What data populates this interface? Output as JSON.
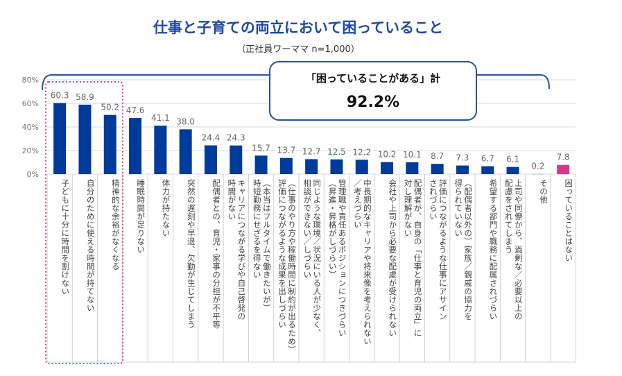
{
  "chart_data": {
    "type": "bar",
    "title": "仕事と子育ての両立において困っていること",
    "subtitle": "（正社員ワーママ n=1,000）",
    "ylim": [
      0,
      80
    ],
    "yticks": [
      "0%",
      "20%",
      "40%",
      "60%",
      "80%"
    ],
    "grid": true,
    "categories": [
      "子どもに十分に時間を割けない",
      "自分のために使える時間が持てない",
      "精神的な余裕がなくなる",
      "睡眠時間が足りない",
      "体力が持たない",
      "突然の遅刻や早退、欠勤が生じてしまう",
      "配偶者との、育児・家事の分担が不平等",
      "キャリアにつながる学びや自己啓発の\n時間がない",
      "（本当はフルタイムで働きたいが）\n時短勤務にせざるを得ない",
      "（仕事のやり方や稼働時間に制約が出るため）\n評価につながるような成果を出しづらい",
      "同じような環境／状況にいる人が少なく、\n相談ができない／しづらい",
      "管理職や責任あるポジションにつきづらい\n（昇進・昇格がしづらい）",
      "中長期的なキャリアや将来像を考えられない\n／考えづらい",
      "会社や上司から必要な配慮が受けられない",
      "配偶者が、自身の「仕事と育児の両立」に\n対し理解がない",
      "評価につながるような仕事にアサイン\nされづらい",
      "（配偶者以外の）家族／親戚の協力を\n得られていない",
      "希望する部門や職務に配属されづらい",
      "上司や同僚から、過剰な／必要以上の\n配慮をされてしまう",
      "その他",
      "困っていることはない"
    ],
    "values": [
      60.3,
      58.9,
      50.2,
      47.6,
      41.1,
      38.0,
      24.4,
      24.3,
      15.7,
      13.7,
      12.7,
      12.5,
      12.2,
      10.2,
      10.1,
      8.7,
      7.3,
      6.7,
      6.1,
      0.2,
      7.8
    ],
    "value_labels": [
      "60.3",
      "58.9",
      "50.2",
      "47.6",
      "41.1",
      "38.0",
      "24.4",
      "24.3",
      "15.7",
      "13.7",
      "12.7",
      "12.5",
      "12.2",
      "10.2",
      "10.1",
      "8.7",
      "7.3",
      "6.7",
      "6.1",
      "0.2",
      "7.8"
    ],
    "bar_color": "#003a9b",
    "highlight_bar_color": "#d6388a",
    "highlight_bar_index": 20,
    "other_bar_color": "#aac4e8",
    "highlight_group_color": "#e0408f",
    "callout": {
      "line1": "「困っていることがある」計",
      "line2": "92.2%"
    }
  }
}
